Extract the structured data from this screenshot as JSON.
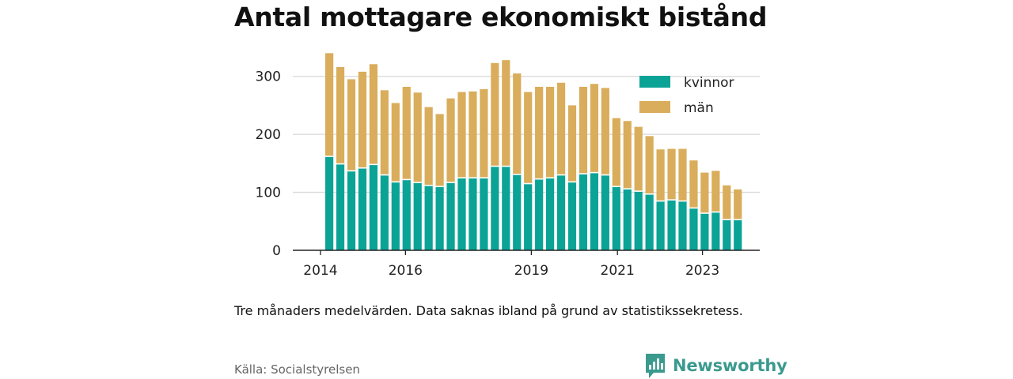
{
  "title": "Antal mottagare ekonomiskt bistånd",
  "note": "Tre månaders medelvärden. Data saknas ibland på grund av statistikssekretess.",
  "source": "Källa: Socialstyrelsen",
  "brand": {
    "name": "Newsworthy",
    "icon": "newsworthy-logo-icon",
    "color": "#3a9a8e"
  },
  "colors": {
    "kvinnor": "#0aa396",
    "man": "#d9ad5b",
    "grid": "#d9d9d9",
    "axis": "#222222"
  },
  "chart_data": {
    "type": "bar",
    "stacked": true,
    "title": "Antal mottagare ekonomiskt bistånd",
    "xlabel": "",
    "ylabel": "",
    "ylim": [
      0,
      350
    ],
    "yticks": [
      0,
      100,
      200,
      300
    ],
    "xticks": [
      {
        "label": "2014",
        "index": -0.8
      },
      {
        "label": "2016",
        "index": 6.9
      },
      {
        "label": "2019",
        "index": 18.3
      },
      {
        "label": "2021",
        "index": 26.1
      },
      {
        "label": "2023",
        "index": 33.8
      }
    ],
    "grid": true,
    "legend": "top-right",
    "series": [
      {
        "name": "kvinnor",
        "values": [
          162,
          149,
          137,
          142,
          148,
          130,
          118,
          122,
          117,
          112,
          110,
          117,
          125,
          125,
          125,
          145,
          145,
          131,
          115,
          123,
          125,
          130,
          118,
          132,
          134,
          130,
          110,
          106,
          102,
          97,
          85,
          87,
          85,
          73,
          64,
          66,
          53,
          53
        ]
      },
      {
        "name": "män",
        "values": [
          178,
          167,
          158,
          166,
          173,
          146,
          136,
          160,
          155,
          135,
          125,
          145,
          148,
          149,
          153,
          178,
          183,
          174,
          158,
          159,
          157,
          159,
          132,
          150,
          153,
          150,
          118,
          117,
          111,
          100,
          89,
          88,
          90,
          82,
          70,
          71,
          59,
          52
        ]
      }
    ]
  }
}
